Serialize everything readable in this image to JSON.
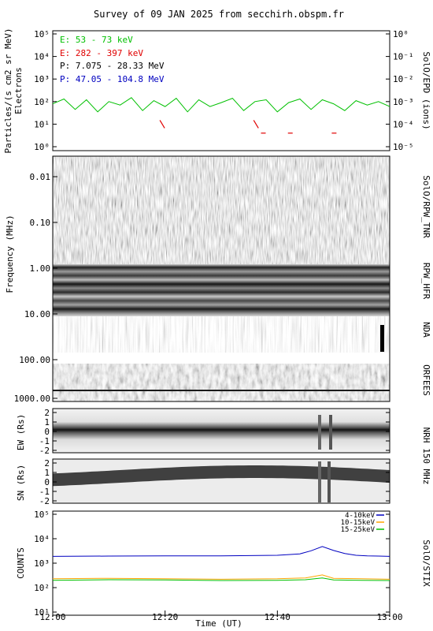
{
  "title": "Survey of 09 JAN 2025 from secchirh.obspm.fr",
  "xlabel": "Time (UT)",
  "x_ticks": [
    "12:00",
    "12:20",
    "12:40",
    "13:00"
  ],
  "colors": {
    "e_low": "#00c000",
    "e_high": "#e00000",
    "p_low": "#000000",
    "p_high": "#0000c0",
    "stix_1": "#0000c0",
    "stix_2": "#ffa500",
    "stix_3": "#00c000"
  },
  "epd": {
    "ylabel_1": "Particles/(s cm2 sr MeV)",
    "ylabel_2": "Electrons",
    "ylabel_right": "SolO/EPD (ions)",
    "left_ticks": [
      "10⁵",
      "10⁴",
      "10³",
      "10²",
      "10¹",
      "10⁰"
    ],
    "right_ticks": [
      "10⁰",
      "10⁻¹",
      "10⁻²",
      "10⁻³",
      "10⁻⁴",
      "10⁻⁵"
    ],
    "legend": [
      "E: 53 - 73 keV",
      "E: 282 - 397 keV",
      "P: 7.075 - 28.33 MeV",
      "P: 47.05 - 104.8 MeV"
    ]
  },
  "spectro": {
    "ylabel": "Frequency (MHz)",
    "ticks": [
      "0.01",
      "0.10",
      "1.00",
      "10.00",
      "100.00",
      "1000.00"
    ],
    "instruments": [
      "SolO/RPW_TNR",
      "RPW_HFR",
      "NDA",
      "ORFEES"
    ]
  },
  "nrh": {
    "ew_label": "EW (Rs)",
    "sn_label": "SN (Rs)",
    "ticks": [
      "2",
      "1",
      "0",
      "-1",
      "-2"
    ],
    "right_label": "NRH 150 MHz"
  },
  "stix": {
    "ylabel": "COUNTS",
    "right_label": "SolO/STIX",
    "ticks": [
      "10⁵",
      "10⁴",
      "10³",
      "10²",
      "10¹"
    ],
    "legend": [
      "4-10keV",
      "10-15keV",
      "15-25keV"
    ]
  },
  "chart_data": [
    {
      "type": "line",
      "title": "Survey of 09 JAN 2025 from secchirh.obspm.fr",
      "ylabel": "Particles/(s cm2 sr MeV) Electrons",
      "yscale": "log",
      "ylim": [
        0.5,
        100000
      ],
      "x_range_minutes": [
        0,
        60
      ],
      "series": [
        {
          "name": "E: 53 - 73 keV",
          "x": [
            0,
            2,
            4,
            6,
            8,
            10,
            12,
            14,
            16,
            18,
            20,
            22,
            24,
            26,
            28,
            30,
            32,
            34,
            36,
            38,
            40,
            42,
            44,
            46,
            48,
            50,
            52,
            54,
            56,
            58,
            60
          ],
          "y": [
            80,
            130,
            45,
            120,
            35,
            100,
            70,
            150,
            40,
            110,
            60,
            140,
            35,
            120,
            60,
            90,
            140,
            40,
            100,
            120,
            35,
            90,
            130,
            45,
            120,
            80,
            40,
            110,
            70,
            100,
            60
          ]
        },
        {
          "name": "E: 282 - 397 keV",
          "x": [
            19.5,
            36.2,
            37.5,
            42.3,
            50.1
          ],
          "y": [
            10,
            10,
            4,
            4,
            4
          ]
        }
      ]
    },
    {
      "type": "line",
      "ylabel": "COUNTS",
      "yscale": "log",
      "ylim": [
        10,
        100000
      ],
      "x_range_minutes": [
        0,
        60
      ],
      "series": [
        {
          "name": "4-10keV",
          "x": [
            0,
            10,
            20,
            30,
            40,
            44,
            46,
            48,
            50,
            52,
            54,
            56,
            58,
            60
          ],
          "y": [
            1900,
            1950,
            1980,
            2000,
            2100,
            2400,
            3200,
            4800,
            3300,
            2500,
            2100,
            2000,
            1950,
            1900
          ]
        },
        {
          "name": "10-15keV",
          "x": [
            0,
            10,
            20,
            30,
            40,
            45,
            48,
            50,
            55,
            60
          ],
          "y": [
            230,
            240,
            230,
            220,
            230,
            250,
            330,
            240,
            230,
            220
          ]
        },
        {
          "name": "15-25keV",
          "x": [
            0,
            10,
            20,
            30,
            40,
            45,
            48,
            50,
            55,
            60
          ],
          "y": [
            200,
            210,
            205,
            195,
            200,
            210,
            250,
            205,
            200,
            195
          ]
        }
      ]
    }
  ]
}
